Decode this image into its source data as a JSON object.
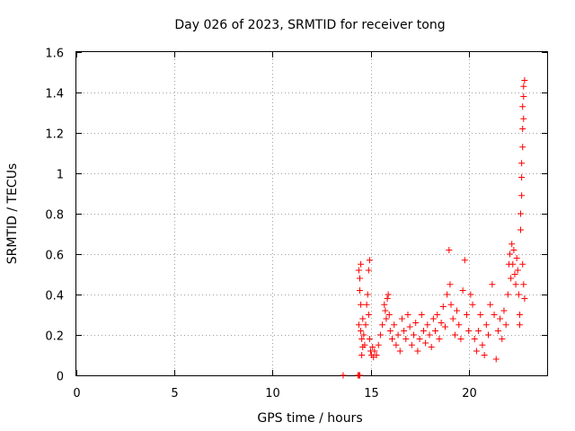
{
  "chart_data": {
    "type": "scatter",
    "title": "Day 026 of 2023, SRMTID for receiver tong",
    "xlabel": "GPS time / hours",
    "ylabel": "SRMTID / TECUs",
    "xlim": [
      0,
      24
    ],
    "ylim": [
      0,
      1.6
    ],
    "x_ticks": [
      0,
      5,
      10,
      15,
      20
    ],
    "x_tick_labels": [
      "0",
      "5",
      "10",
      "15",
      "20"
    ],
    "y_ticks": [
      0,
      0.2,
      0.4,
      0.6,
      0.8,
      1.0,
      1.2,
      1.4,
      1.6
    ],
    "y_tick_labels": [
      "0",
      "0.2",
      "0.4",
      "0.6",
      "0.8",
      "1",
      "1.2",
      "1.4",
      "1.6"
    ],
    "grid": true,
    "marker": "+",
    "color": "#ff0000",
    "series": [
      {
        "name": "SRMTID",
        "points": [
          [
            13.6,
            0.0
          ],
          [
            14.35,
            0.0
          ],
          [
            14.4,
            0.0
          ],
          [
            14.45,
            0.0
          ],
          [
            14.4,
            0.52
          ],
          [
            14.45,
            0.48
          ],
          [
            14.5,
            0.55
          ],
          [
            14.45,
            0.42
          ],
          [
            14.5,
            0.35
          ],
          [
            14.4,
            0.25
          ],
          [
            14.5,
            0.22
          ],
          [
            14.55,
            0.18
          ],
          [
            14.6,
            0.14
          ],
          [
            14.55,
            0.1
          ],
          [
            14.6,
            0.28
          ],
          [
            14.65,
            0.2
          ],
          [
            14.7,
            0.15
          ],
          [
            14.75,
            0.25
          ],
          [
            14.8,
            0.35
          ],
          [
            14.85,
            0.4
          ],
          [
            14.9,
            0.52
          ],
          [
            14.95,
            0.57
          ],
          [
            14.9,
            0.3
          ],
          [
            14.95,
            0.18
          ],
          [
            15.0,
            0.12
          ],
          [
            15.05,
            0.1
          ],
          [
            15.1,
            0.14
          ],
          [
            15.15,
            0.09
          ],
          [
            15.2,
            0.12
          ],
          [
            15.3,
            0.1
          ],
          [
            15.4,
            0.15
          ],
          [
            15.5,
            0.2
          ],
          [
            15.6,
            0.25
          ],
          [
            15.7,
            0.35
          ],
          [
            15.75,
            0.32
          ],
          [
            15.8,
            0.28
          ],
          [
            15.85,
            0.38
          ],
          [
            15.9,
            0.4
          ],
          [
            15.95,
            0.3
          ],
          [
            16.0,
            0.22
          ],
          [
            16.1,
            0.18
          ],
          [
            16.2,
            0.25
          ],
          [
            16.3,
            0.15
          ],
          [
            16.4,
            0.2
          ],
          [
            16.5,
            0.12
          ],
          [
            16.6,
            0.28
          ],
          [
            16.7,
            0.22
          ],
          [
            16.8,
            0.18
          ],
          [
            16.9,
            0.3
          ],
          [
            17.0,
            0.24
          ],
          [
            17.1,
            0.15
          ],
          [
            17.2,
            0.2
          ],
          [
            17.3,
            0.26
          ],
          [
            17.4,
            0.12
          ],
          [
            17.5,
            0.18
          ],
          [
            17.6,
            0.3
          ],
          [
            17.7,
            0.22
          ],
          [
            17.8,
            0.16
          ],
          [
            17.9,
            0.25
          ],
          [
            18.0,
            0.2
          ],
          [
            18.1,
            0.14
          ],
          [
            18.2,
            0.28
          ],
          [
            18.3,
            0.22
          ],
          [
            18.4,
            0.3
          ],
          [
            18.5,
            0.18
          ],
          [
            18.6,
            0.26
          ],
          [
            18.7,
            0.34
          ],
          [
            18.8,
            0.24
          ],
          [
            18.9,
            0.4
          ],
          [
            19.0,
            0.62
          ],
          [
            19.05,
            0.45
          ],
          [
            19.1,
            0.35
          ],
          [
            19.2,
            0.28
          ],
          [
            19.3,
            0.2
          ],
          [
            19.4,
            0.32
          ],
          [
            19.5,
            0.25
          ],
          [
            19.6,
            0.18
          ],
          [
            19.7,
            0.42
          ],
          [
            19.8,
            0.57
          ],
          [
            19.9,
            0.3
          ],
          [
            20.0,
            0.22
          ],
          [
            20.1,
            0.4
          ],
          [
            20.2,
            0.35
          ],
          [
            20.3,
            0.18
          ],
          [
            20.4,
            0.12
          ],
          [
            20.5,
            0.22
          ],
          [
            20.6,
            0.3
          ],
          [
            20.7,
            0.15
          ],
          [
            20.8,
            0.1
          ],
          [
            20.9,
            0.25
          ],
          [
            21.0,
            0.2
          ],
          [
            21.1,
            0.35
          ],
          [
            21.2,
            0.45
          ],
          [
            21.3,
            0.3
          ],
          [
            21.4,
            0.08
          ],
          [
            21.5,
            0.22
          ],
          [
            21.6,
            0.28
          ],
          [
            21.7,
            0.18
          ],
          [
            21.8,
            0.32
          ],
          [
            21.9,
            0.25
          ],
          [
            22.0,
            0.4
          ],
          [
            22.05,
            0.55
          ],
          [
            22.1,
            0.6
          ],
          [
            22.15,
            0.48
          ],
          [
            22.2,
            0.65
          ],
          [
            22.25,
            0.55
          ],
          [
            22.3,
            0.62
          ],
          [
            22.35,
            0.5
          ],
          [
            22.4,
            0.45
          ],
          [
            22.45,
            0.58
          ],
          [
            22.5,
            0.52
          ],
          [
            22.55,
            0.4
          ],
          [
            22.6,
            0.3
          ],
          [
            22.6,
            0.25
          ],
          [
            22.65,
            0.72
          ],
          [
            22.65,
            0.8
          ],
          [
            22.7,
            0.89
          ],
          [
            22.7,
            0.98
          ],
          [
            22.7,
            1.05
          ],
          [
            22.75,
            1.13
          ],
          [
            22.75,
            1.22
          ],
          [
            22.8,
            1.27
          ],
          [
            22.75,
            1.33
          ],
          [
            22.8,
            1.38
          ],
          [
            22.8,
            1.43
          ],
          [
            22.85,
            1.46
          ],
          [
            22.75,
            0.55
          ],
          [
            22.8,
            0.45
          ],
          [
            22.85,
            0.38
          ]
        ]
      }
    ]
  }
}
